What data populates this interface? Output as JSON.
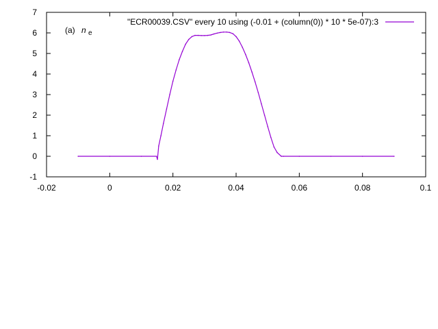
{
  "chart_data": {
    "type": "line",
    "annotation_prefix": "(a)",
    "annotation_var": "n",
    "annotation_sub": "e",
    "legend_position": "top-right",
    "grid": false,
    "xlim": [
      -0.02,
      0.1
    ],
    "ylim": [
      -1,
      7
    ],
    "xticks": [
      -0.02,
      0,
      0.02,
      0.04,
      0.06,
      0.08,
      0.1
    ],
    "xtick_labels": [
      "-0.02",
      "0",
      "0.02",
      "0.04",
      "0.06",
      "0.08",
      "0.1"
    ],
    "yticks": [
      -1,
      0,
      1,
      2,
      3,
      4,
      5,
      6,
      7
    ],
    "ytick_labels": [
      "-1",
      "0",
      "1",
      "2",
      "3",
      "4",
      "5",
      "6",
      "7"
    ],
    "series": [
      {
        "name": "\"ECR00039.CSV\" every 10 using (-0.01 + (column(0)) * 10 * 5e-07):3",
        "color": "#9400d3",
        "x": [
          -0.01,
          0.0,
          0.01,
          0.0148,
          0.0151,
          0.0155,
          0.0162,
          0.017,
          0.018,
          0.019,
          0.02,
          0.021,
          0.022,
          0.023,
          0.024,
          0.025,
          0.026,
          0.027,
          0.028,
          0.029,
          0.03,
          0.031,
          0.032,
          0.033,
          0.034,
          0.035,
          0.036,
          0.037,
          0.038,
          0.039,
          0.04,
          0.041,
          0.042,
          0.043,
          0.044,
          0.045,
          0.046,
          0.047,
          0.048,
          0.049,
          0.05,
          0.051,
          0.052,
          0.053,
          0.0543,
          0.055,
          0.06,
          0.07,
          0.08,
          0.09
        ],
        "y": [
          0,
          0,
          0,
          0,
          -0.15,
          0.5,
          1.0,
          1.6,
          2.3,
          3.0,
          3.65,
          4.2,
          4.7,
          5.1,
          5.45,
          5.68,
          5.82,
          5.88,
          5.88,
          5.87,
          5.87,
          5.88,
          5.9,
          5.95,
          5.99,
          6.02,
          6.04,
          6.04,
          6.02,
          5.96,
          5.82,
          5.6,
          5.3,
          4.95,
          4.55,
          4.1,
          3.62,
          3.1,
          2.55,
          2.0,
          1.45,
          0.92,
          0.45,
          0.18,
          0.0,
          0.0,
          0.0,
          0.0,
          0.0,
          0.0
        ]
      }
    ]
  }
}
